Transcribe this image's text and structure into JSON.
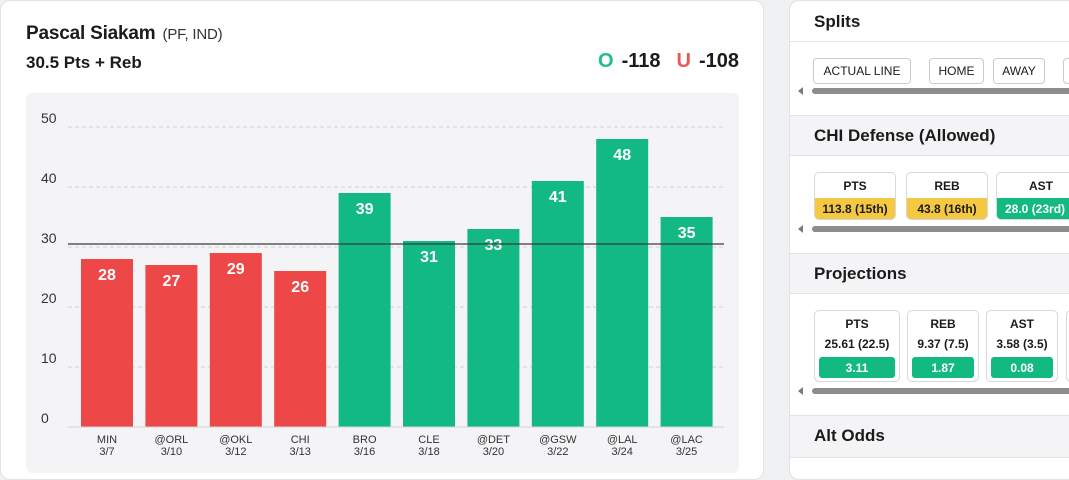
{
  "player": {
    "name": "Pascal Siakam",
    "meta": "(PF, IND)",
    "prop": "30.5 Pts + Reb"
  },
  "odds": {
    "over_letter": "O",
    "over_value": "-118",
    "under_letter": "U",
    "under_value": "-108"
  },
  "colors": {
    "over_green": "#13b982",
    "under_red": "#ee4747",
    "rank_yellow": "#f5c842",
    "rank_green": "#13b982"
  },
  "chart_data": {
    "type": "bar",
    "categories": [
      "MIN 3/7",
      "@ORL 3/10",
      "@OKL 3/12",
      "CHI 3/13",
      "BRO 3/16",
      "CLE 3/18",
      "@DET 3/20",
      "@GSW 3/22",
      "@LAL 3/24",
      "@LAC 3/25"
    ],
    "opponents": [
      "MIN",
      "@ORL",
      "@OKL",
      "CHI",
      "BRO",
      "CLE",
      "@DET",
      "@GSW",
      "@LAL",
      "@LAC"
    ],
    "dates": [
      "3/7",
      "3/10",
      "3/12",
      "3/13",
      "3/16",
      "3/18",
      "3/20",
      "3/22",
      "3/24",
      "3/25"
    ],
    "values": [
      28,
      27,
      29,
      26,
      39,
      31,
      33,
      41,
      48,
      35
    ],
    "line": 30.5,
    "yticks": [
      0,
      10,
      20,
      30,
      40,
      50
    ],
    "ylim": [
      0,
      50
    ],
    "grid": true
  },
  "splits": {
    "title": "Splits",
    "buttons": [
      "ACTUAL LINE",
      "HOME",
      "AWAY"
    ]
  },
  "defense": {
    "title": "CHI Defense (Allowed)",
    "cards": [
      {
        "label": "PTS",
        "value": "113.8 (15th)",
        "color": "#f5c842"
      },
      {
        "label": "REB",
        "value": "43.8 (16th)",
        "color": "#f5c842"
      },
      {
        "label": "AST",
        "value": "28.0 (23rd)",
        "color": "#13b982"
      }
    ]
  },
  "projections": {
    "title": "Projections",
    "cards": [
      {
        "label": "PTS",
        "value": "25.61 (22.5)",
        "diff": "3.11"
      },
      {
        "label": "REB",
        "value": "9.37 (7.5)",
        "diff": "1.87"
      },
      {
        "label": "AST",
        "value": "3.58 (3.5)",
        "diff": "0.08"
      }
    ]
  },
  "alt_odds": {
    "title": "Alt Odds"
  }
}
